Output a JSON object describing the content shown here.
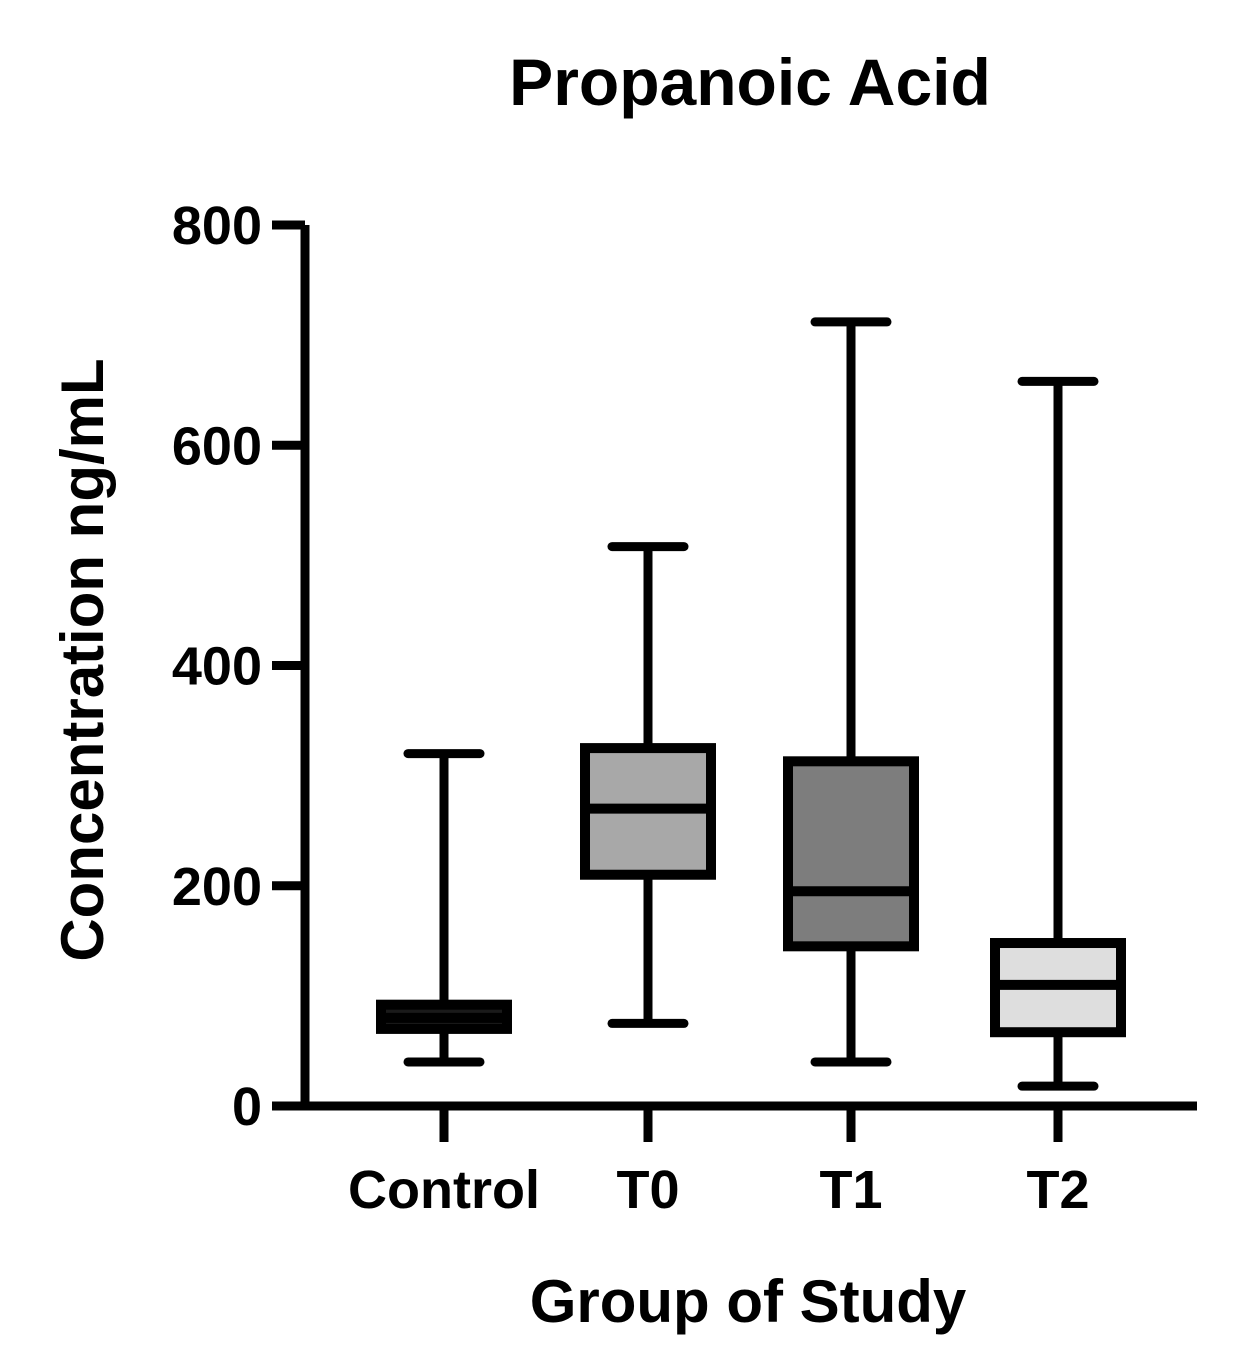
{
  "chart_data": {
    "type": "box",
    "title": "Propanoic Acid",
    "xlabel": "Group of Study",
    "ylabel": "Concentration ng/mL",
    "ylim": [
      0,
      800
    ],
    "yticks": [
      0,
      200,
      400,
      600,
      800
    ],
    "categories": [
      "Control",
      "T0",
      "T1",
      "T2"
    ],
    "boxes": [
      {
        "name": "Control",
        "min": 40,
        "q1": 70,
        "median": 80,
        "q3": 92,
        "max": 320,
        "fill": "#1a1a1a"
      },
      {
        "name": "T0",
        "min": 75,
        "q1": 210,
        "median": 270,
        "q3": 325,
        "max": 508,
        "fill": "#a8a8a8"
      },
      {
        "name": "T1",
        "min": 40,
        "q1": 145,
        "median": 195,
        "q3": 313,
        "max": 712,
        "fill": "#7d7d7d"
      },
      {
        "name": "T2",
        "min": 18,
        "q1": 67,
        "median": 110,
        "q3": 148,
        "max": 658,
        "fill": "#dedede"
      }
    ]
  }
}
